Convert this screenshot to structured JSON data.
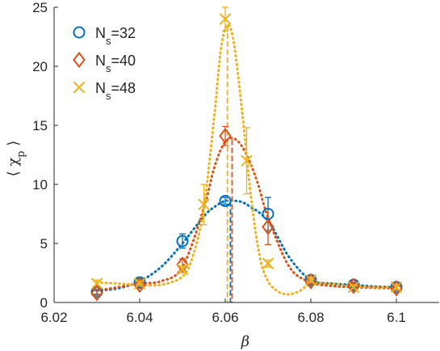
{
  "chart_data": {
    "type": "scatter",
    "xlabel": "β",
    "ylabel": "⟨ χ_p ⟩",
    "xlim": [
      6.02,
      6.11
    ],
    "ylim": [
      0,
      25
    ],
    "xticks": [
      "6.02",
      "6.04",
      "6.06",
      "6.08",
      "6.1"
    ],
    "xtick_values": [
      6.02,
      6.04,
      6.06,
      6.08,
      6.1
    ],
    "yticks": [
      "0",
      "5",
      "10",
      "15",
      "20",
      "25"
    ],
    "ytick_values": [
      0,
      5,
      10,
      15,
      20,
      25
    ],
    "legend_position": "top-left",
    "grid": false,
    "series": [
      {
        "name": "N_s=32",
        "label_base": "N",
        "label_sub": "s",
        "label_rest": "=32",
        "marker": "circle",
        "color": "#0072BD",
        "points": [
          {
            "x": 6.03,
            "y": 0.9,
            "err": 0.2
          },
          {
            "x": 6.04,
            "y": 1.7,
            "err": 0.3
          },
          {
            "x": 6.05,
            "y": 5.2,
            "err": 0.6
          },
          {
            "x": 6.06,
            "y": 8.6,
            "err": 0.3
          },
          {
            "x": 6.07,
            "y": 7.5,
            "err": 1.4
          },
          {
            "x": 6.08,
            "y": 1.9,
            "err": 0.2
          },
          {
            "x": 6.09,
            "y": 1.5,
            "err": 0.2
          },
          {
            "x": 6.1,
            "y": 1.3,
            "err": 0.2
          }
        ],
        "curve": [
          [
            6.03,
            1.0
          ],
          [
            6.035,
            1.2
          ],
          [
            6.04,
            1.8
          ],
          [
            6.045,
            3.0
          ],
          [
            6.05,
            5.0
          ],
          [
            6.055,
            7.3
          ],
          [
            6.0575,
            8.1
          ],
          [
            6.06,
            8.6
          ],
          [
            6.0625,
            8.6
          ],
          [
            6.065,
            8.3
          ],
          [
            6.07,
            6.9
          ],
          [
            6.075,
            3.8
          ],
          [
            6.08,
            1.9
          ],
          [
            6.085,
            1.6
          ],
          [
            6.09,
            1.5
          ],
          [
            6.095,
            1.35
          ],
          [
            6.1,
            1.3
          ]
        ],
        "peak_x": 6.0612
      },
      {
        "name": "N_s=40",
        "label_base": "N",
        "label_sub": "s",
        "label_rest": "=40",
        "marker": "diamond",
        "color": "#D95319",
        "points": [
          {
            "x": 6.03,
            "y": 0.8,
            "err": 0.2
          },
          {
            "x": 6.04,
            "y": 1.5,
            "err": 0.3
          },
          {
            "x": 6.05,
            "y": 3.2,
            "err": 0.5
          },
          {
            "x": 6.06,
            "y": 14.1,
            "err": 0.8
          },
          {
            "x": 6.07,
            "y": 6.4,
            "err": 1.5
          },
          {
            "x": 6.08,
            "y": 1.8,
            "err": 0.2
          },
          {
            "x": 6.09,
            "y": 1.4,
            "err": 0.2
          },
          {
            "x": 6.1,
            "y": 1.2,
            "err": 0.2
          }
        ],
        "curve": [
          [
            6.03,
            1.0
          ],
          [
            6.035,
            1.3
          ],
          [
            6.04,
            1.6
          ],
          [
            6.045,
            1.8
          ],
          [
            6.05,
            3.0
          ],
          [
            6.055,
            8.0
          ],
          [
            6.0575,
            11.5
          ],
          [
            6.06,
            13.6
          ],
          [
            6.0625,
            13.8
          ],
          [
            6.065,
            12.5
          ],
          [
            6.0675,
            10.2
          ],
          [
            6.07,
            7.2
          ],
          [
            6.075,
            3.0
          ],
          [
            6.08,
            1.7
          ],
          [
            6.085,
            1.4
          ],
          [
            6.09,
            1.3
          ],
          [
            6.095,
            1.25
          ],
          [
            6.1,
            1.2
          ]
        ],
        "peak_x": 6.0616
      },
      {
        "name": "N_s=48",
        "label_base": "N",
        "label_sub": "s",
        "label_rest": "=48",
        "marker": "x",
        "color": "#EDB120",
        "points": [
          {
            "x": 6.03,
            "y": 1.6,
            "err": 0.3
          },
          {
            "x": 6.04,
            "y": 1.6,
            "err": 0.3
          },
          {
            "x": 6.05,
            "y": 2.8,
            "err": 0.3
          },
          {
            "x": 6.055,
            "y": 8.3,
            "err": 1.7
          },
          {
            "x": 6.06,
            "y": 24.0,
            "err": 1.0
          },
          {
            "x": 6.065,
            "y": 12.0,
            "err": 2.8
          },
          {
            "x": 6.07,
            "y": 3.3,
            "err": 0.3
          },
          {
            "x": 6.08,
            "y": 1.9,
            "err": 0.2
          },
          {
            "x": 6.09,
            "y": 1.3,
            "err": 0.2
          },
          {
            "x": 6.1,
            "y": 1.3,
            "err": 0.2
          }
        ],
        "curve": [
          [
            6.03,
            1.7
          ],
          [
            6.035,
            1.6
          ],
          [
            6.04,
            1.5
          ],
          [
            6.045,
            1.5
          ],
          [
            6.05,
            2.2
          ],
          [
            6.0525,
            4.0
          ],
          [
            6.055,
            8.0
          ],
          [
            6.0575,
            16.0
          ],
          [
            6.059,
            21.5
          ],
          [
            6.0605,
            23.5
          ],
          [
            6.062,
            22.0
          ],
          [
            6.064,
            16.0
          ],
          [
            6.066,
            9.0
          ],
          [
            6.068,
            4.0
          ],
          [
            6.07,
            1.8
          ],
          [
            6.0725,
            0.9
          ],
          [
            6.075,
            0.7
          ],
          [
            6.0775,
            1.0
          ],
          [
            6.08,
            1.6
          ],
          [
            6.085,
            1.6
          ],
          [
            6.09,
            1.4
          ],
          [
            6.095,
            1.3
          ],
          [
            6.1,
            1.3
          ]
        ],
        "peak_x": 6.0605
      }
    ]
  }
}
